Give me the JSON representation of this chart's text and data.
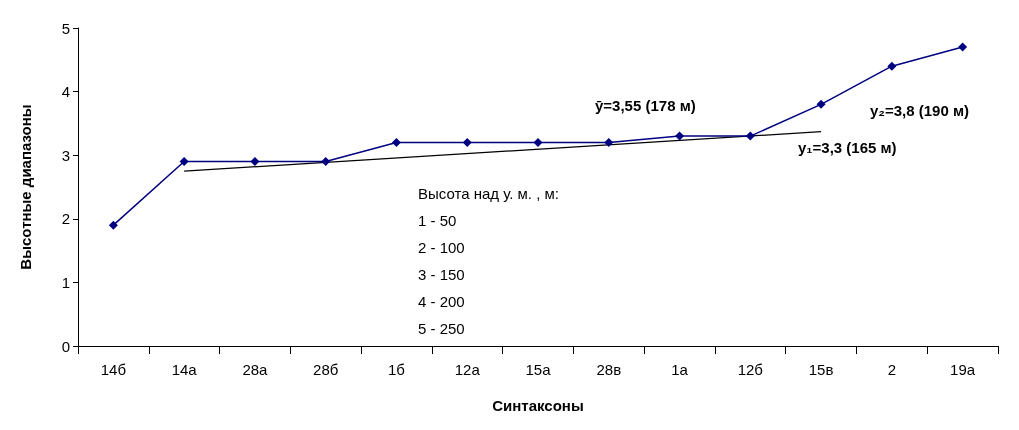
{
  "chart_data": {
    "type": "line",
    "xlabel": "Синтаксоны",
    "ylabel": "Высотные диапазоны",
    "categories": [
      "14б",
      "14а",
      "28а",
      "28б",
      "1б",
      "12а",
      "15а",
      "28в",
      "1а",
      "12б",
      "15в",
      "2",
      "19а"
    ],
    "series": [
      {
        "color": "#000080",
        "values": [
          1.9,
          2.9,
          2.9,
          2.9,
          3.2,
          3.2,
          3.2,
          3.2,
          3.3,
          3.3,
          3.8,
          4.4,
          4.7
        ],
        "marker": "diamond"
      },
      {
        "type": "line",
        "color": "#000000",
        "x": [
          "14а",
          "15в"
        ],
        "values": [
          2.75,
          3.37
        ],
        "marker": "none"
      }
    ],
    "ylim": [
      0,
      5
    ],
    "yticks": [
      0,
      1,
      2,
      3,
      4,
      5
    ],
    "grid": false,
    "annotations": [
      "ȳ=3,55 (178 м)",
      "y₂=3,8 (190 м)",
      "y₁=3,3 (165 м)",
      "Высота над у. м. , м:",
      "1 - 50",
      "2 - 100",
      "3 - 150",
      "4 - 200",
      "5 - 250"
    ]
  }
}
